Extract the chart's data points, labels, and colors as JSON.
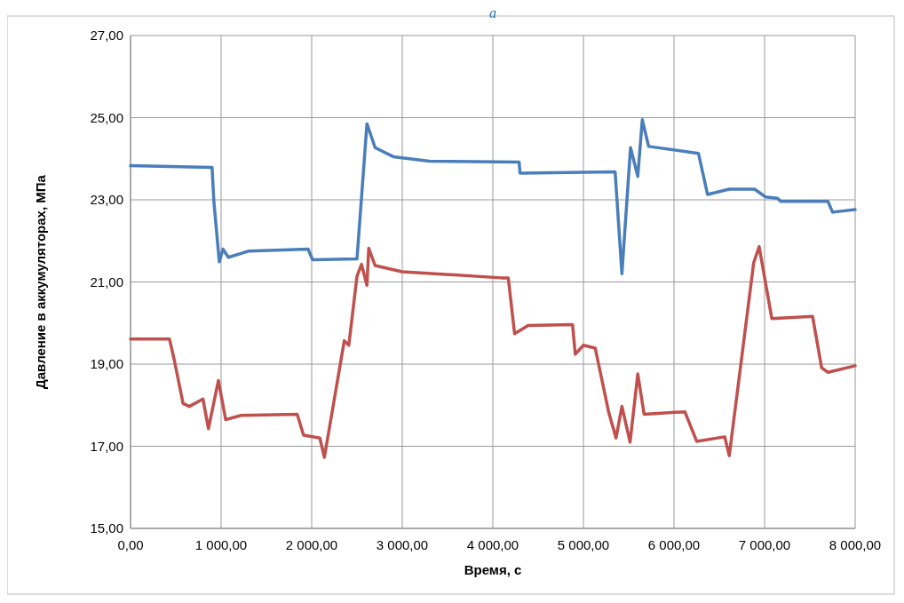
{
  "chart_data": {
    "type": "line",
    "title": "а",
    "xlabel": "Время, с",
    "ylabel": "Давление в аккумуляторах, МПа",
    "xlim": [
      0,
      8000
    ],
    "ylim": [
      15,
      27
    ],
    "xticks": [
      {
        "value": 0,
        "label": "0,00"
      },
      {
        "value": 1000,
        "label": "1 000,00"
      },
      {
        "value": 2000,
        "label": "2 000,00"
      },
      {
        "value": 3000,
        "label": "3 000,00"
      },
      {
        "value": 4000,
        "label": "4 000,00"
      },
      {
        "value": 5000,
        "label": "5 000,00"
      },
      {
        "value": 6000,
        "label": "6 000,00"
      },
      {
        "value": 7000,
        "label": "7 000,00"
      },
      {
        "value": 8000,
        "label": "8 000,00"
      }
    ],
    "yticks": [
      {
        "value": 15,
        "label": "15,00"
      },
      {
        "value": 17,
        "label": "17,00"
      },
      {
        "value": 19,
        "label": "19,00"
      },
      {
        "value": 21,
        "label": "21,00"
      },
      {
        "value": 23,
        "label": "23,00"
      },
      {
        "value": 25,
        "label": "25,00"
      },
      {
        "value": 27,
        "label": "27,00"
      }
    ],
    "grid": true,
    "marker": "none",
    "line_style": "solid",
    "series": [
      {
        "color": "#4a7ebb",
        "x": [
          0,
          880,
          900,
          920,
          980,
          1020,
          1080,
          1300,
          1960,
          2010,
          2500,
          2610,
          2700,
          2900,
          3300,
          4290,
          4300,
          5350,
          5425,
          5520,
          5600,
          5650,
          5720,
          6270,
          6370,
          6610,
          6890,
          7010,
          7140,
          7180,
          7700,
          7750,
          8000
        ],
        "values": [
          23.83,
          23.79,
          23.79,
          22.96,
          21.49,
          21.8,
          21.6,
          21.75,
          21.8,
          21.54,
          21.56,
          24.85,
          24.27,
          24.05,
          23.94,
          23.92,
          23.65,
          23.68,
          21.2,
          24.27,
          23.57,
          24.95,
          24.3,
          24.13,
          23.13,
          23.26,
          23.26,
          23.07,
          23.04,
          22.96,
          22.96,
          22.7,
          22.76
        ]
      },
      {
        "color": "#c0504d",
        "x": [
          0,
          430,
          480,
          580,
          650,
          800,
          860,
          970,
          1050,
          1220,
          1840,
          1910,
          2090,
          2140,
          2360,
          2410,
          2500,
          2550,
          2610,
          2630,
          2700,
          3000,
          4090,
          4170,
          4240,
          4390,
          4880,
          4910,
          5000,
          5130,
          5280,
          5360,
          5425,
          5515,
          5600,
          5670,
          6120,
          6250,
          6560,
          6610,
          6880,
          6940,
          7080,
          7530,
          7630,
          7700,
          8000
        ],
        "values": [
          19.61,
          19.61,
          19.13,
          18.04,
          17.97,
          18.15,
          17.43,
          18.6,
          17.65,
          17.75,
          17.78,
          17.27,
          17.2,
          16.73,
          19.57,
          19.46,
          21.14,
          21.43,
          20.92,
          21.82,
          21.4,
          21.25,
          21.1,
          21.1,
          19.74,
          19.94,
          19.96,
          19.24,
          19.46,
          19.39,
          17.82,
          17.2,
          17.97,
          17.1,
          18.76,
          17.78,
          17.84,
          17.12,
          17.23,
          16.77,
          21.47,
          21.86,
          20.11,
          20.16,
          18.91,
          18.8,
          18.96
        ]
      }
    ]
  }
}
